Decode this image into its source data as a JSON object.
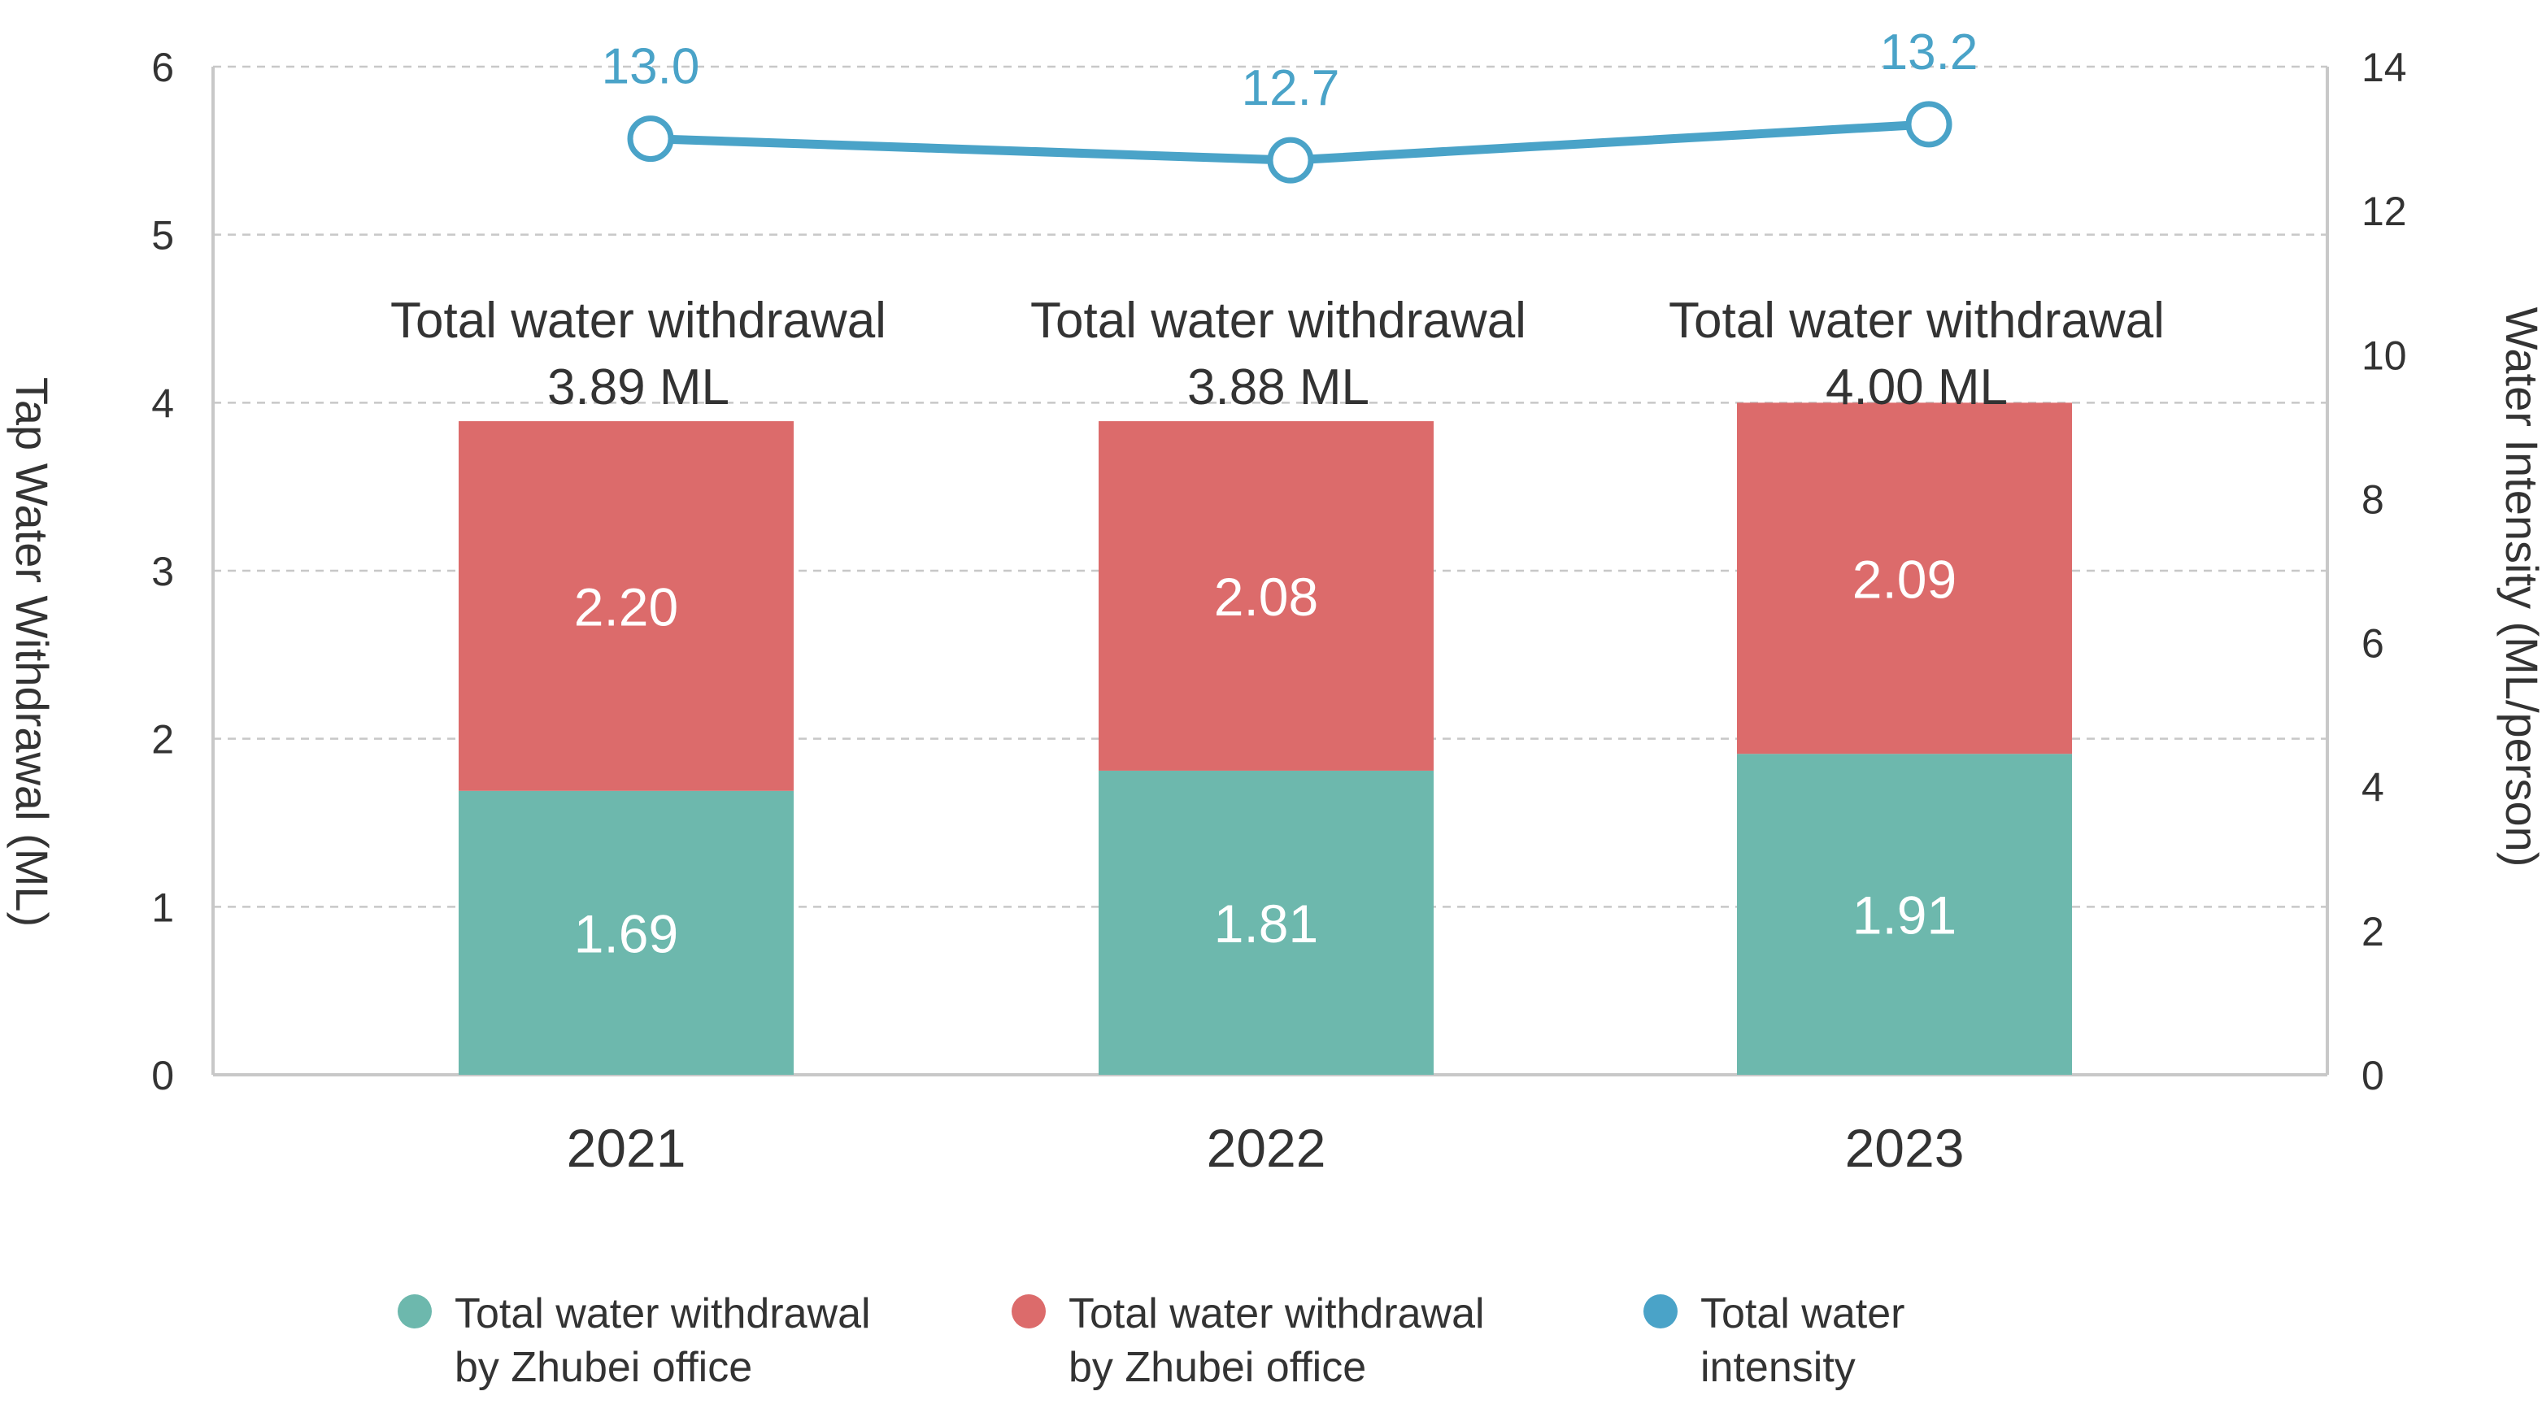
{
  "chart_data": {
    "type": "bar",
    "stacked": true,
    "categories": [
      "2021",
      "2022",
      "2023"
    ],
    "series": [
      {
        "name": "Total water withdrawal\nby Zhubei office",
        "values": [
          1.69,
          1.81,
          1.91
        ],
        "color": "#6db8ad",
        "axis": "left"
      },
      {
        "name": "Total water withdrawal\nby Zhubei office",
        "values": [
          2.2,
          2.08,
          2.09
        ],
        "color": "#dc6b6b",
        "axis": "left"
      },
      {
        "name": "Total water\nintensity",
        "type": "line",
        "values": [
          13.0,
          12.7,
          13.2
        ],
        "color": "#4aa3c8",
        "axis": "right"
      }
    ],
    "bar_labels": [
      "1.69",
      "1.81",
      "1.91"
    ],
    "bar_labels_top": [
      "2.20",
      "2.08",
      "2.09"
    ],
    "line_labels": [
      "13.0",
      "12.7",
      "13.2"
    ],
    "totals": [
      {
        "line1": "Total water withdrawal",
        "line2": "3.89 ML",
        "value": 3.89
      },
      {
        "line1": "Total water withdrawal",
        "line2": "3.88 ML",
        "value": 3.88
      },
      {
        "line1": "Total water withdrawal",
        "line2": "4.00 ML",
        "value": 4.0
      }
    ],
    "ylabel": "Tap Water Withdrawal (ML)",
    "y2label": "Water Intensity (ML/person)",
    "ylim": [
      0,
      6
    ],
    "y2lim": [
      0,
      14
    ],
    "yticks": [
      0,
      1,
      2,
      3,
      4,
      5,
      6
    ],
    "y2ticks": [
      0,
      2,
      4,
      6,
      8,
      10,
      12,
      14
    ],
    "grid": true,
    "legend_position": "bottom"
  }
}
